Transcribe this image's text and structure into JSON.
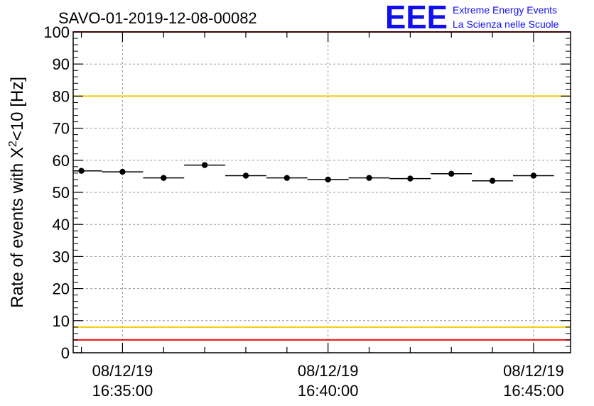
{
  "chart_data": {
    "type": "scatter",
    "title": "SAVO-01-2019-12-08-00082",
    "ylabel": "Rate of events with X",
    "ylabel_sup": "2",
    "ylabel_rest": "<10 [Hz]",
    "ylim": [
      0,
      100
    ],
    "yticks": [
      "0",
      "10",
      "20",
      "30",
      "40",
      "50",
      "60",
      "70",
      "80",
      "90",
      "100"
    ],
    "xlim": [
      -0.2,
      11.9
    ],
    "xtick_labels": [
      {
        "date": "08/12/19",
        "time": "16:35:00",
        "pos": 1.0
      },
      {
        "date": "08/12/19",
        "time": "16:40:00",
        "pos": 6.0
      },
      {
        "date": "08/12/19",
        "time": "16:45:00",
        "pos": 11.0
      }
    ],
    "points": [
      {
        "x": 0,
        "y": 56.7
      },
      {
        "x": 1,
        "y": 56.4
      },
      {
        "x": 2,
        "y": 54.5
      },
      {
        "x": 3,
        "y": 58.5
      },
      {
        "x": 4,
        "y": 55.2
      },
      {
        "x": 5,
        "y": 54.5
      },
      {
        "x": 6,
        "y": 54.0
      },
      {
        "x": 7,
        "y": 54.5
      },
      {
        "x": 8,
        "y": 54.3
      },
      {
        "x": 9,
        "y": 55.8
      },
      {
        "x": 10,
        "y": 53.6
      },
      {
        "x": 11,
        "y": 55.2
      }
    ],
    "bin_width": 1.0,
    "reference_lines": [
      {
        "y": 100,
        "color": "#ee1111"
      },
      {
        "y": 80,
        "color": "#eecc00"
      },
      {
        "y": 8,
        "color": "#eecc00"
      },
      {
        "y": 4,
        "color": "#ee1111"
      }
    ],
    "grid": true
  },
  "logo": {
    "mark": "EEE",
    "line1": "Extreme Energy Events",
    "line2": "La Scienza nelle Scuole"
  },
  "colors": {
    "marker": "#000000",
    "grid": "#999999",
    "logo": "#1010ee"
  }
}
